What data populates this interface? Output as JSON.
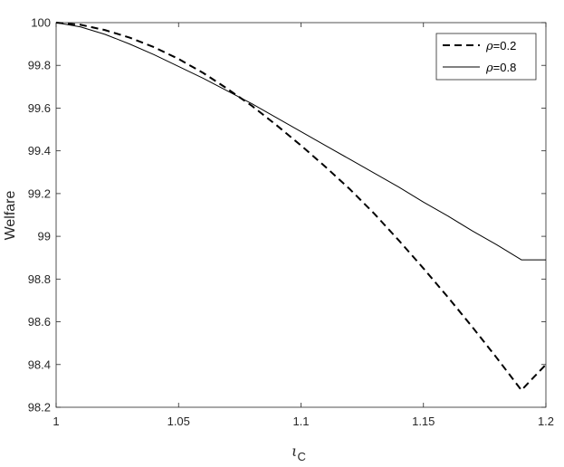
{
  "chart_data": {
    "type": "line",
    "title": "",
    "ylabel": "Welfare",
    "xlabel_symbol": "ι",
    "xlabel_subscript": "C",
    "xlim": [
      1,
      1.2
    ],
    "ylim": [
      98.2,
      100
    ],
    "grid": false,
    "legend_position": "top-right",
    "xticks": [
      1,
      1.05,
      1.1,
      1.15,
      1.2
    ],
    "xtick_labels": [
      "1",
      "1.05",
      "1.1",
      "1.15",
      "1.2"
    ],
    "yticks": [
      98.2,
      98.4,
      98.6,
      98.8,
      99,
      99.2,
      99.4,
      99.6,
      99.8,
      100
    ],
    "ytick_labels": [
      "98.2",
      "98.4",
      "98.6",
      "98.8",
      "99",
      "99.2",
      "99.4",
      "99.6",
      "99.8",
      "100"
    ],
    "series": [
      {
        "name_symbol": "ρ",
        "name_value": "=0.2",
        "style": "dashed",
        "color": "#000000",
        "x": [
          1.0,
          1.01,
          1.02,
          1.03,
          1.04,
          1.05,
          1.06,
          1.07,
          1.08,
          1.09,
          1.1,
          1.11,
          1.12,
          1.13,
          1.14,
          1.15,
          1.16,
          1.17,
          1.18,
          1.19,
          1.2
        ],
        "y": [
          100.0,
          99.99,
          99.965,
          99.93,
          99.885,
          99.83,
          99.765,
          99.69,
          99.61,
          99.52,
          99.425,
          99.325,
          99.22,
          99.105,
          98.98,
          98.85,
          98.715,
          98.575,
          98.43,
          98.28,
          98.4
        ]
      },
      {
        "name_symbol": "ρ",
        "name_value": "=0.8",
        "style": "solid",
        "color": "#000000",
        "x": [
          1.0,
          1.01,
          1.02,
          1.03,
          1.04,
          1.05,
          1.06,
          1.07,
          1.08,
          1.09,
          1.1,
          1.11,
          1.12,
          1.13,
          1.14,
          1.15,
          1.16,
          1.17,
          1.18,
          1.19,
          1.2
        ],
        "y": [
          100.0,
          99.98,
          99.945,
          99.9,
          99.85,
          99.795,
          99.74,
          99.68,
          99.62,
          99.555,
          99.49,
          99.425,
          99.36,
          99.295,
          99.23,
          99.16,
          99.095,
          99.025,
          98.96,
          98.89,
          98.89
        ]
      }
    ]
  }
}
